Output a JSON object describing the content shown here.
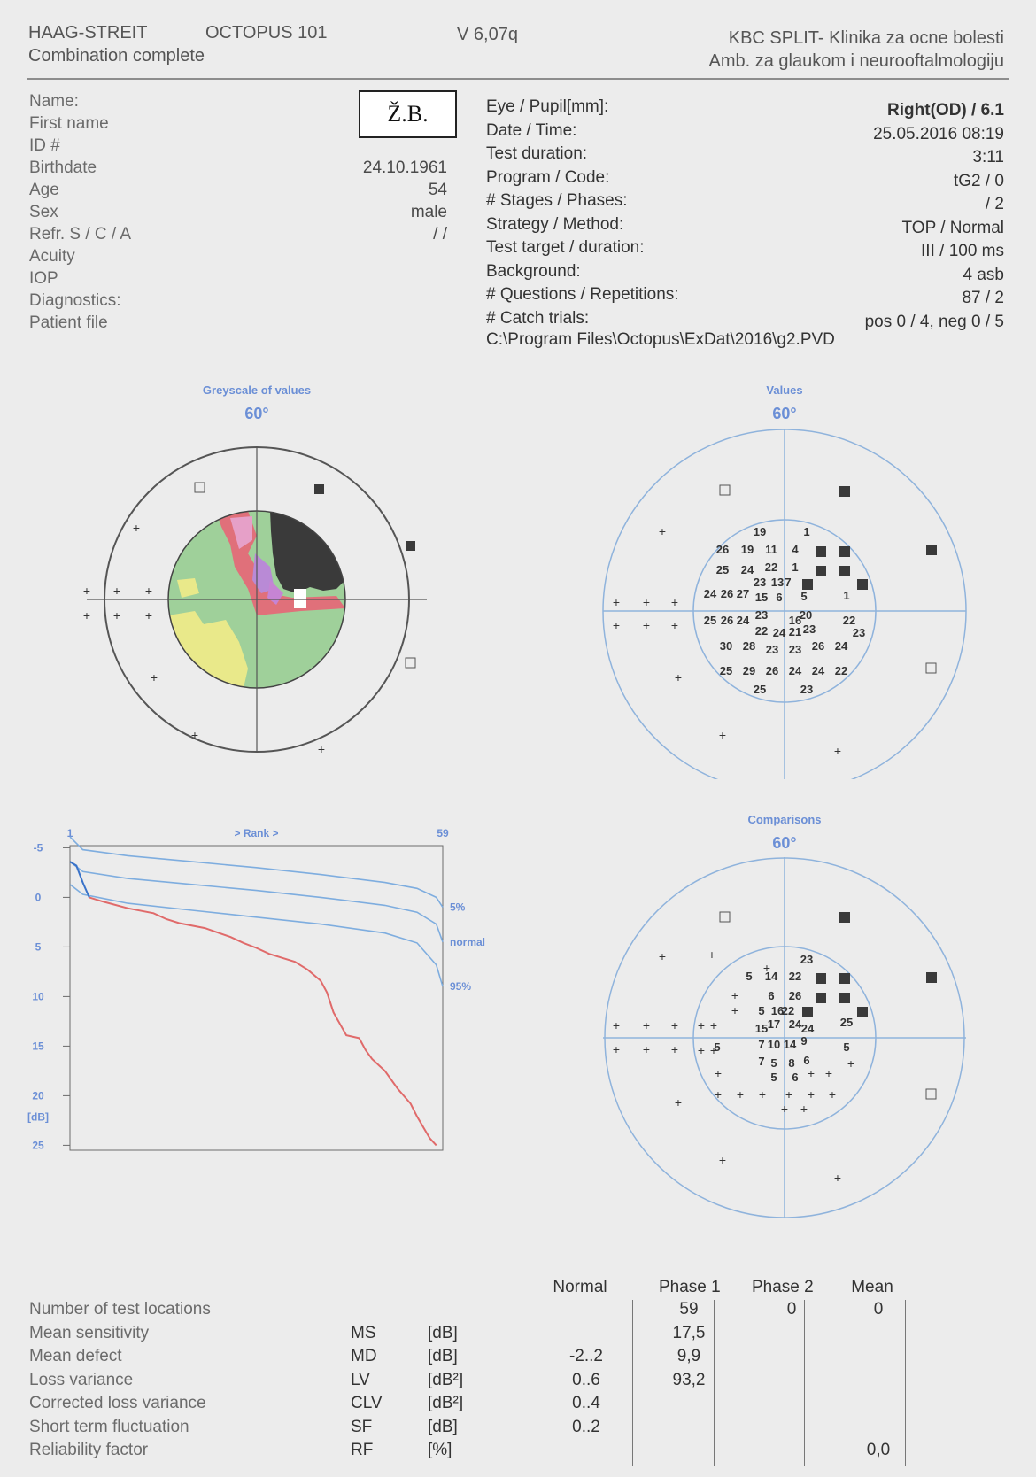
{
  "header": {
    "brand": "HAAG-STREIT",
    "device": "OCTOPUS 101",
    "version": "V 6,07q",
    "subtitle": "Combination complete",
    "clinic": "KBC SPLIT- Klinika za ocne bolesti",
    "department": "Amb. za glaukom i neurooftalmologiju"
  },
  "patient": {
    "initials": "Ž.B.",
    "labels": [
      "Name:",
      "First name",
      "ID #",
      "Birthdate",
      "Age",
      "Sex",
      "Refr. S / C / A",
      "Acuity",
      "IOP",
      "Diagnostics:",
      "Patient file"
    ],
    "values": [
      "",
      "",
      "",
      "24.10.1961",
      "54",
      "male",
      "/ /",
      "",
      "",
      "",
      ""
    ]
  },
  "test": {
    "labels": [
      "Eye / Pupil[mm]:",
      "Date / Time:",
      "Test duration:",
      "Program / Code:",
      "# Stages / Phases:",
      "Strategy / Method:",
      "Test target / duration:",
      "Background:",
      "# Questions / Repetitions:",
      "# Catch trials:"
    ],
    "values": [
      "Right(OD) /  6.1",
      "25.05.2016  08:19",
      "3:11",
      "tG2 / 0",
      "/ 2",
      "TOP / Normal",
      "III / 100 ms",
      "4 asb",
      "87 / 2",
      "pos 0 / 4, neg 0 / 5"
    ],
    "path": "C:\\Program Files\\Octopus\\ExDat\\2016\\g2.PVD"
  },
  "plots": {
    "greyscale": {
      "title": "Greyscale of values",
      "scale": "60°"
    },
    "values": {
      "title": "Values",
      "scale": "60°"
    },
    "comparisons": {
      "title": "Comparisons",
      "scale": "60°"
    }
  },
  "values_map": [
    {
      "t": "19",
      "x": 0,
      "y": 0
    },
    {
      "t": "1",
      "x": 0,
      "y": 0
    },
    {
      "t": "26",
      "x": 0,
      "y": 0
    },
    {
      "t": "19",
      "x": 0,
      "y": 0
    },
    {
      "t": "11",
      "x": 0,
      "y": 0
    },
    {
      "t": "4",
      "x": 0,
      "y": 0
    },
    {
      "t": "25",
      "x": 0,
      "y": 0
    },
    {
      "t": "24",
      "x": 0,
      "y": 0
    },
    {
      "t": "22",
      "x": 0,
      "y": 0
    },
    {
      "t": "1",
      "x": 0,
      "y": 0
    },
    {
      "t": "23",
      "x": 0,
      "y": 0
    },
    {
      "t": "13",
      "x": 0,
      "y": 0
    },
    {
      "t": "7",
      "x": 0,
      "y": 0
    },
    {
      "t": "24",
      "x": 0,
      "y": 0
    },
    {
      "t": "26",
      "x": 0,
      "y": 0
    },
    {
      "t": "27",
      "x": 0,
      "y": 0
    },
    {
      "t": "15",
      "x": 0,
      "y": 0
    },
    {
      "t": "6",
      "x": 0,
      "y": 0
    },
    {
      "t": "5",
      "x": 0,
      "y": 0
    },
    {
      "t": "1",
      "x": 0,
      "y": 0
    },
    {
      "t": "25",
      "x": 0,
      "y": 0
    },
    {
      "t": "26",
      "x": 0,
      "y": 0
    },
    {
      "t": "24",
      "x": 0,
      "y": 0
    },
    {
      "t": "23",
      "x": 0,
      "y": 0
    },
    {
      "t": "16",
      "x": 0,
      "y": 0
    },
    {
      "t": "20",
      "x": 0,
      "y": 0
    },
    {
      "t": "22",
      "x": 0,
      "y": 0
    },
    {
      "t": "22",
      "x": 0,
      "y": 0
    },
    {
      "t": "24",
      "x": 0,
      "y": 0
    },
    {
      "t": "21",
      "x": 0,
      "y": 0
    },
    {
      "t": "23",
      "x": 0,
      "y": 0
    },
    {
      "t": "23",
      "x": 0,
      "y": 0
    },
    {
      "t": "30",
      "x": 0,
      "y": 0
    },
    {
      "t": "28",
      "x": 0,
      "y": 0
    },
    {
      "t": "23",
      "x": 0,
      "y": 0
    },
    {
      "t": "23",
      "x": 0,
      "y": 0
    },
    {
      "t": "26",
      "x": 0,
      "y": 0
    },
    {
      "t": "24",
      "x": 0,
      "y": 0
    },
    {
      "t": "25",
      "x": 0,
      "y": 0
    },
    {
      "t": "29",
      "x": 0,
      "y": 0
    },
    {
      "t": "26",
      "x": 0,
      "y": 0
    },
    {
      "t": "24",
      "x": 0,
      "y": 0
    },
    {
      "t": "24",
      "x": 0,
      "y": 0
    },
    {
      "t": "22",
      "x": 0,
      "y": 0
    },
    {
      "t": "25",
      "x": 0,
      "y": 0
    },
    {
      "t": "23",
      "x": 0,
      "y": 0
    }
  ],
  "comparisons_map": [
    "23",
    "5",
    "14",
    "22",
    "6",
    "26",
    "5",
    "16",
    "22",
    "17",
    "24",
    "15",
    "24",
    "25",
    "5",
    "7",
    "10",
    "14",
    "9",
    "5",
    "7",
    "5",
    "8",
    "6",
    "5",
    "6",
    "25"
  ],
  "rank_chart": {
    "type": "line",
    "xlabel": "> Rank >",
    "x_start": "1",
    "x_end": "59",
    "ylabel": "[dB]",
    "y_ticks": [
      "-5",
      "0",
      "5",
      "10",
      "15",
      "20",
      "25"
    ],
    "ylim": [
      -7,
      25.5
    ],
    "xlim": [
      1,
      59
    ],
    "bands": [
      {
        "name": "5%",
        "x": [
          1,
          3,
          10,
          20,
          30,
          40,
          50,
          55,
          58,
          59
        ],
        "y": [
          -6.1,
          -4.8,
          -4.2,
          -3.6,
          -3.0,
          -2.3,
          -1.5,
          -0.9,
          0.0,
          1.0
        ]
      },
      {
        "name": "normal",
        "x": [
          1,
          3,
          10,
          20,
          30,
          40,
          50,
          55,
          58,
          59
        ],
        "y": [
          -3.6,
          -2.6,
          -1.9,
          -1.3,
          -0.7,
          0.0,
          0.8,
          1.5,
          2.7,
          4.5
        ]
      },
      {
        "name": "95%",
        "x": [
          1,
          3,
          10,
          20,
          30,
          40,
          50,
          55,
          58,
          59
        ],
        "y": [
          -1.3,
          -0.3,
          0.6,
          1.3,
          2.0,
          2.7,
          3.6,
          4.6,
          6.8,
          9.0
        ]
      }
    ],
    "patient_blue": {
      "x": [
        1,
        2,
        3,
        4
      ],
      "y": [
        -3.6,
        -3.2,
        -1.5,
        0.0
      ]
    },
    "patient_red": {
      "x": [
        4,
        6,
        10,
        14,
        16,
        18,
        22,
        26,
        28,
        30,
        32,
        34,
        36,
        38,
        40,
        41,
        42,
        44,
        46,
        47,
        48,
        50,
        52,
        54,
        55,
        56,
        57,
        58
      ],
      "y": [
        0.0,
        0.4,
        1.1,
        1.6,
        2.2,
        2.6,
        3.1,
        4.0,
        4.6,
        5.1,
        5.7,
        6.1,
        6.5,
        7.3,
        8.4,
        9.6,
        11.6,
        13.9,
        14.2,
        15.4,
        16.3,
        17.5,
        19.3,
        20.8,
        22.1,
        23.2,
        24.3,
        25.0
      ]
    }
  },
  "stats": {
    "columns": [
      "Normal",
      "Phase 1",
      "Phase 2",
      "Mean"
    ],
    "rows": [
      {
        "label": "Number of test locations",
        "abbr": "",
        "unit": "",
        "normal": "",
        "p1": "59",
        "p2": "0",
        "mean": "0"
      },
      {
        "label": "Mean sensitivity",
        "abbr": "MS",
        "unit": "[dB]",
        "normal": "",
        "p1": "17,5",
        "p2": "",
        "mean": ""
      },
      {
        "label": "Mean defect",
        "abbr": "MD",
        "unit": "[dB]",
        "normal": "-2..2",
        "p1": "9,9",
        "p2": "",
        "mean": ""
      },
      {
        "label": "Loss variance",
        "abbr": "LV",
        "unit": "[dB²]",
        "normal": "0..6",
        "p1": "93,2",
        "p2": "",
        "mean": ""
      },
      {
        "label": "Corrected loss variance",
        "abbr": "CLV",
        "unit": "[dB²]",
        "normal": "0..4",
        "p1": "",
        "p2": "",
        "mean": ""
      },
      {
        "label": "Short term fluctuation",
        "abbr": "SF",
        "unit": "[dB]",
        "normal": "0..2",
        "p1": "",
        "p2": "",
        "mean": ""
      },
      {
        "label": "Reliability factor",
        "abbr": "RF",
        "unit": "[%]",
        "normal": "",
        "p1": "",
        "p2": "",
        "mean": "0,0"
      }
    ]
  },
  "colors": {
    "plot_title": "#6b8fd6",
    "ring": "#8fb3dc",
    "curve_red": "#e06a6a",
    "curve_blue": "#3a73c9",
    "band_blue": "#7eaddf"
  }
}
